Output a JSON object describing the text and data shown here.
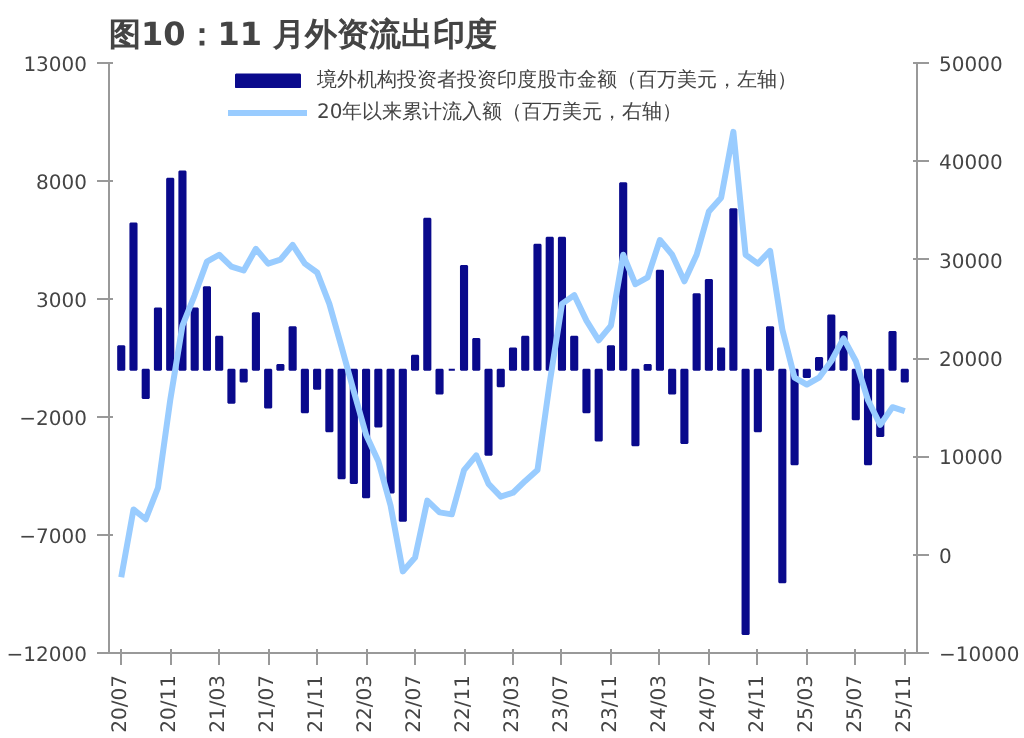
{
  "chart_data": {
    "type": "bar",
    "title": "图10：11 月外资流出印度",
    "categories": [
      "20/07",
      null,
      null,
      null,
      "20/11",
      null,
      null,
      null,
      "21/03",
      null,
      null,
      null,
      "21/07",
      null,
      null,
      null,
      "21/11",
      null,
      null,
      null,
      "22/03",
      null,
      null,
      null,
      "22/07",
      null,
      null,
      null,
      "22/11",
      null,
      null,
      null,
      "23/03",
      null,
      null,
      null,
      "23/07",
      null,
      null,
      null,
      "23/11",
      null,
      null,
      null,
      "24/03",
      null,
      null,
      null,
      "24/07",
      null,
      null,
      null,
      "24/11",
      null,
      null,
      null,
      "25/03",
      null,
      null,
      null,
      "25/07",
      null,
      null,
      null,
      "25/11"
    ],
    "series": [
      {
        "name": "境外机构投资者投资印度股市金额（百万美元，左轴）",
        "color": "#0a0a8c",
        "values": [
          1000,
          6200,
          -1200,
          2600,
          8100,
          8400,
          2600,
          3500,
          1400,
          -1400,
          -500,
          2400,
          -1600,
          200,
          1800,
          -1800,
          -800,
          -2600,
          -4600,
          -4800,
          -5400,
          -2400,
          -5200,
          -6400,
          600,
          6400,
          -1000,
          0,
          4400,
          1300,
          -3600,
          -700,
          900,
          1400,
          5300,
          5600,
          5600,
          1400,
          -1800,
          -3000,
          1000,
          7900,
          -3200,
          200,
          4200,
          -1000,
          -3100,
          3200,
          3800,
          900,
          6800,
          -11200,
          -2600,
          1800,
          -9000,
          -4000,
          -300,
          500,
          2300,
          1600,
          -2100,
          -4000,
          -2800,
          1600,
          -500
        ]
      },
      {
        "name": "20年以来累计流入额（百万美元，右轴）",
        "type": "line",
        "axis": "y2",
        "color": "#99ccff",
        "values": [
          -2300,
          4600,
          3600,
          6800,
          15700,
          23300,
          26400,
          29800,
          30500,
          29300,
          28900,
          31100,
          29600,
          30000,
          31500,
          29600,
          28700,
          25500,
          21100,
          16600,
          12200,
          9500,
          5000,
          -1700,
          -300,
          5500,
          4300,
          4100,
          8600,
          10100,
          7200,
          5900,
          6300,
          7500,
          8600,
          17500,
          25500,
          26400,
          23800,
          21800,
          23300,
          30500,
          27500,
          28200,
          32000,
          30500,
          27800,
          30500,
          34900,
          36300,
          43000,
          30500,
          29600,
          30900,
          22900,
          18000,
          17300,
          18000,
          19700,
          22000,
          19700,
          15700,
          13200,
          15000,
          14600
        ]
      }
    ],
    "ylim": [
      -12000,
      13000
    ],
    "yticks": [
      -12000,
      -7000,
      -2000,
      3000,
      8000,
      13000
    ],
    "y2lim": [
      -10000,
      50000
    ],
    "y2ticks": [
      -10000,
      0,
      10000,
      20000,
      30000,
      40000,
      50000
    ],
    "legend": "top",
    "grid": false
  }
}
